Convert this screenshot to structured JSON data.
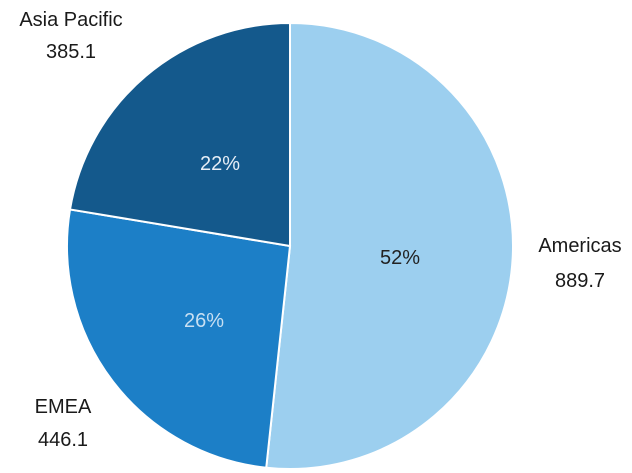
{
  "chart_data": {
    "type": "pie",
    "categories": [
      "Americas",
      "EMEA",
      "Asia Pacific"
    ],
    "values": [
      889.7,
      446.1,
      385.1
    ],
    "percent_labels": [
      "52%",
      "26%",
      "22%"
    ],
    "value_labels": [
      "889.7",
      "446.1",
      "385.1"
    ],
    "colors": [
      "#9ccfef",
      "#1c7fc7",
      "#14598c"
    ],
    "percent_label_colors": [
      "#222222",
      "#c7dff2",
      "#e6eef6"
    ],
    "start_angle_deg": 0,
    "direction": "clockwise",
    "legend": "none"
  }
}
